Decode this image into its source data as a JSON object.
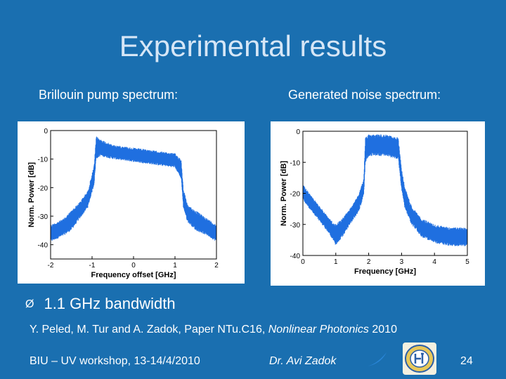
{
  "slide": {
    "title": "Experimental results",
    "caption_left": "Brillouin pump spectrum:",
    "caption_right": "Generated noise spectrum:",
    "bullet_symbol": "Ø",
    "bullet": "1.1 GHz bandwidth",
    "reference_authors": "Y. Peled, M. Tur and A. Zadok, Paper NTu.C16, ",
    "reference_venue": "Nonlinear Photonics",
    "reference_year": " 2010",
    "footer_left": "BIU – UV workshop, 13-14/4/2010",
    "footer_center": "Dr. Avi Zadok",
    "page_number": "24"
  },
  "colors": {
    "background": "#1a6fb0",
    "trace": "#1f6fe0"
  },
  "chart_data": [
    {
      "type": "line",
      "xlabel": "Frequency offset [GHz]",
      "ylabel": "Norm. Power [dB]",
      "xlim": [
        -2,
        2
      ],
      "ylim": [
        -45,
        0
      ],
      "xticks": [
        -2,
        -1,
        0,
        1,
        2
      ],
      "yticks": [
        0,
        -10,
        -20,
        -30,
        -40
      ],
      "xtick_labels": [
        "-2",
        "-1",
        "0",
        "1",
        "2"
      ],
      "ytick_labels": [
        "0",
        "-10",
        "-20",
        "-30",
        "-40"
      ],
      "envelope": {
        "x": [
          -2.0,
          -1.7,
          -1.5,
          -1.3,
          -1.1,
          -0.95,
          -0.9,
          -0.8,
          -0.5,
          0.0,
          0.5,
          1.0,
          1.15,
          1.2,
          1.3,
          1.5,
          1.8,
          2.0
        ],
        "upper": [
          -33,
          -31,
          -28,
          -25,
          -21,
          -12,
          -2,
          -3,
          -5,
          -6,
          -7,
          -8,
          -10,
          -20,
          -26,
          -28,
          -31,
          -33
        ],
        "lower": [
          -39,
          -37,
          -35,
          -31,
          -27,
          -19,
          -10,
          -9,
          -10,
          -11,
          -12,
          -13,
          -17,
          -27,
          -32,
          -35,
          -37,
          -39
        ]
      },
      "grid": false
    },
    {
      "type": "line",
      "xlabel": "Frequency [GHz]",
      "ylabel": "Norm. Power [dB]",
      "xlim": [
        0,
        5
      ],
      "ylim": [
        -40,
        0
      ],
      "xticks": [
        0,
        1,
        2,
        3,
        4,
        5
      ],
      "yticks": [
        0,
        -10,
        -20,
        -30,
        -40
      ],
      "xtick_labels": [
        "0",
        "1",
        "2",
        "3",
        "4",
        "5"
      ],
      "ytick_labels": [
        "0",
        "-10",
        "-20",
        "-30",
        "-40"
      ],
      "envelope": {
        "x": [
          0.0,
          0.2,
          0.5,
          0.8,
          1.0,
          1.2,
          1.5,
          1.7,
          1.85,
          1.9,
          2.0,
          2.5,
          2.9,
          3.0,
          3.1,
          3.3,
          3.6,
          4.0,
          4.5,
          5.0
        ],
        "upper": [
          -17,
          -20,
          -24,
          -28,
          -30,
          -28,
          -24,
          -20,
          -15,
          -2,
          -1,
          -1,
          -2,
          -12,
          -18,
          -24,
          -28,
          -30,
          -31,
          -31
        ],
        "lower": [
          -22,
          -25,
          -29,
          -33,
          -37,
          -34,
          -29,
          -26,
          -21,
          -10,
          -8,
          -8,
          -9,
          -19,
          -25,
          -30,
          -34,
          -36,
          -37,
          -37
        ]
      },
      "grid": false
    }
  ]
}
